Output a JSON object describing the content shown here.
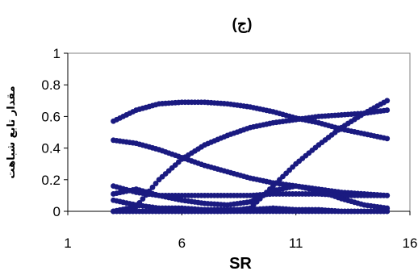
{
  "chart_data": {
    "type": "scatter",
    "title": "(ج)",
    "xlabel": "SR",
    "ylabel": "مقدار تابع شباهت",
    "xlim": [
      1,
      16
    ],
    "ylim": [
      0,
      1
    ],
    "x_ticks": [
      1,
      6,
      11,
      16
    ],
    "y_ticks": [
      0,
      0.2,
      0.4,
      0.6,
      0.8,
      1
    ],
    "grid": false,
    "legend": "none",
    "marker_color": "#1a1a80",
    "series": [
      {
        "x": [
          3,
          4,
          5,
          6,
          7,
          8,
          9,
          10,
          11,
          12,
          13,
          14,
          15
        ],
        "values": [
          0.57,
          0.64,
          0.68,
          0.69,
          0.69,
          0.68,
          0.66,
          0.63,
          0.59,
          0.56,
          0.52,
          0.49,
          0.46
        ]
      },
      {
        "x": [
          3,
          4,
          5,
          6,
          7,
          8,
          9,
          10,
          11,
          12,
          13,
          14,
          15
        ],
        "values": [
          0.45,
          0.43,
          0.39,
          0.34,
          0.29,
          0.25,
          0.21,
          0.18,
          0.16,
          0.14,
          0.12,
          0.11,
          0.1
        ]
      },
      {
        "x": [
          3,
          4,
          5,
          6,
          7,
          8,
          9,
          10,
          11,
          12,
          13,
          14,
          15
        ],
        "values": [
          0.0,
          0.03,
          0.2,
          0.33,
          0.42,
          0.48,
          0.53,
          0.56,
          0.58,
          0.6,
          0.61,
          0.62,
          0.64
        ]
      },
      {
        "x": [
          3,
          4,
          5,
          6,
          7,
          8,
          9,
          10,
          11,
          12,
          13,
          14,
          15
        ],
        "values": [
          0.0,
          0.0,
          0.0,
          0.0,
          0.0,
          0.0,
          0.02,
          0.16,
          0.3,
          0.42,
          0.53,
          0.62,
          0.7
        ]
      },
      {
        "x": [
          3,
          4,
          5,
          6,
          7,
          8,
          9,
          10,
          11,
          12,
          13,
          14,
          15
        ],
        "values": [
          0.16,
          0.12,
          0.1,
          0.1,
          0.1,
          0.1,
          0.1,
          0.11,
          0.11,
          0.11,
          0.1,
          0.1,
          0.1
        ]
      },
      {
        "x": [
          3,
          4,
          5,
          6,
          7,
          8,
          9,
          10,
          11,
          12,
          13,
          14,
          15
        ],
        "values": [
          0.11,
          0.14,
          0.1,
          0.07,
          0.05,
          0.04,
          0.06,
          0.13,
          0.16,
          0.13,
          0.08,
          0.04,
          0.02
        ]
      },
      {
        "x": [
          3,
          4,
          5,
          6,
          7,
          8,
          9,
          10,
          11,
          12,
          13,
          14,
          15
        ],
        "values": [
          0.07,
          0.04,
          0.02,
          0.02,
          0.01,
          0.01,
          0.01,
          0.02,
          0.01,
          0.01,
          0.0,
          0.0,
          0.0
        ]
      },
      {
        "x": [
          3,
          4,
          5,
          6,
          7,
          8,
          9,
          10,
          11,
          12,
          13,
          14,
          15
        ],
        "values": [
          0.0,
          0.0,
          0.0,
          0.0,
          0.0,
          0.0,
          0.0,
          0.0,
          0.0,
          0.0,
          0.0,
          0.0,
          0.0
        ]
      }
    ]
  }
}
